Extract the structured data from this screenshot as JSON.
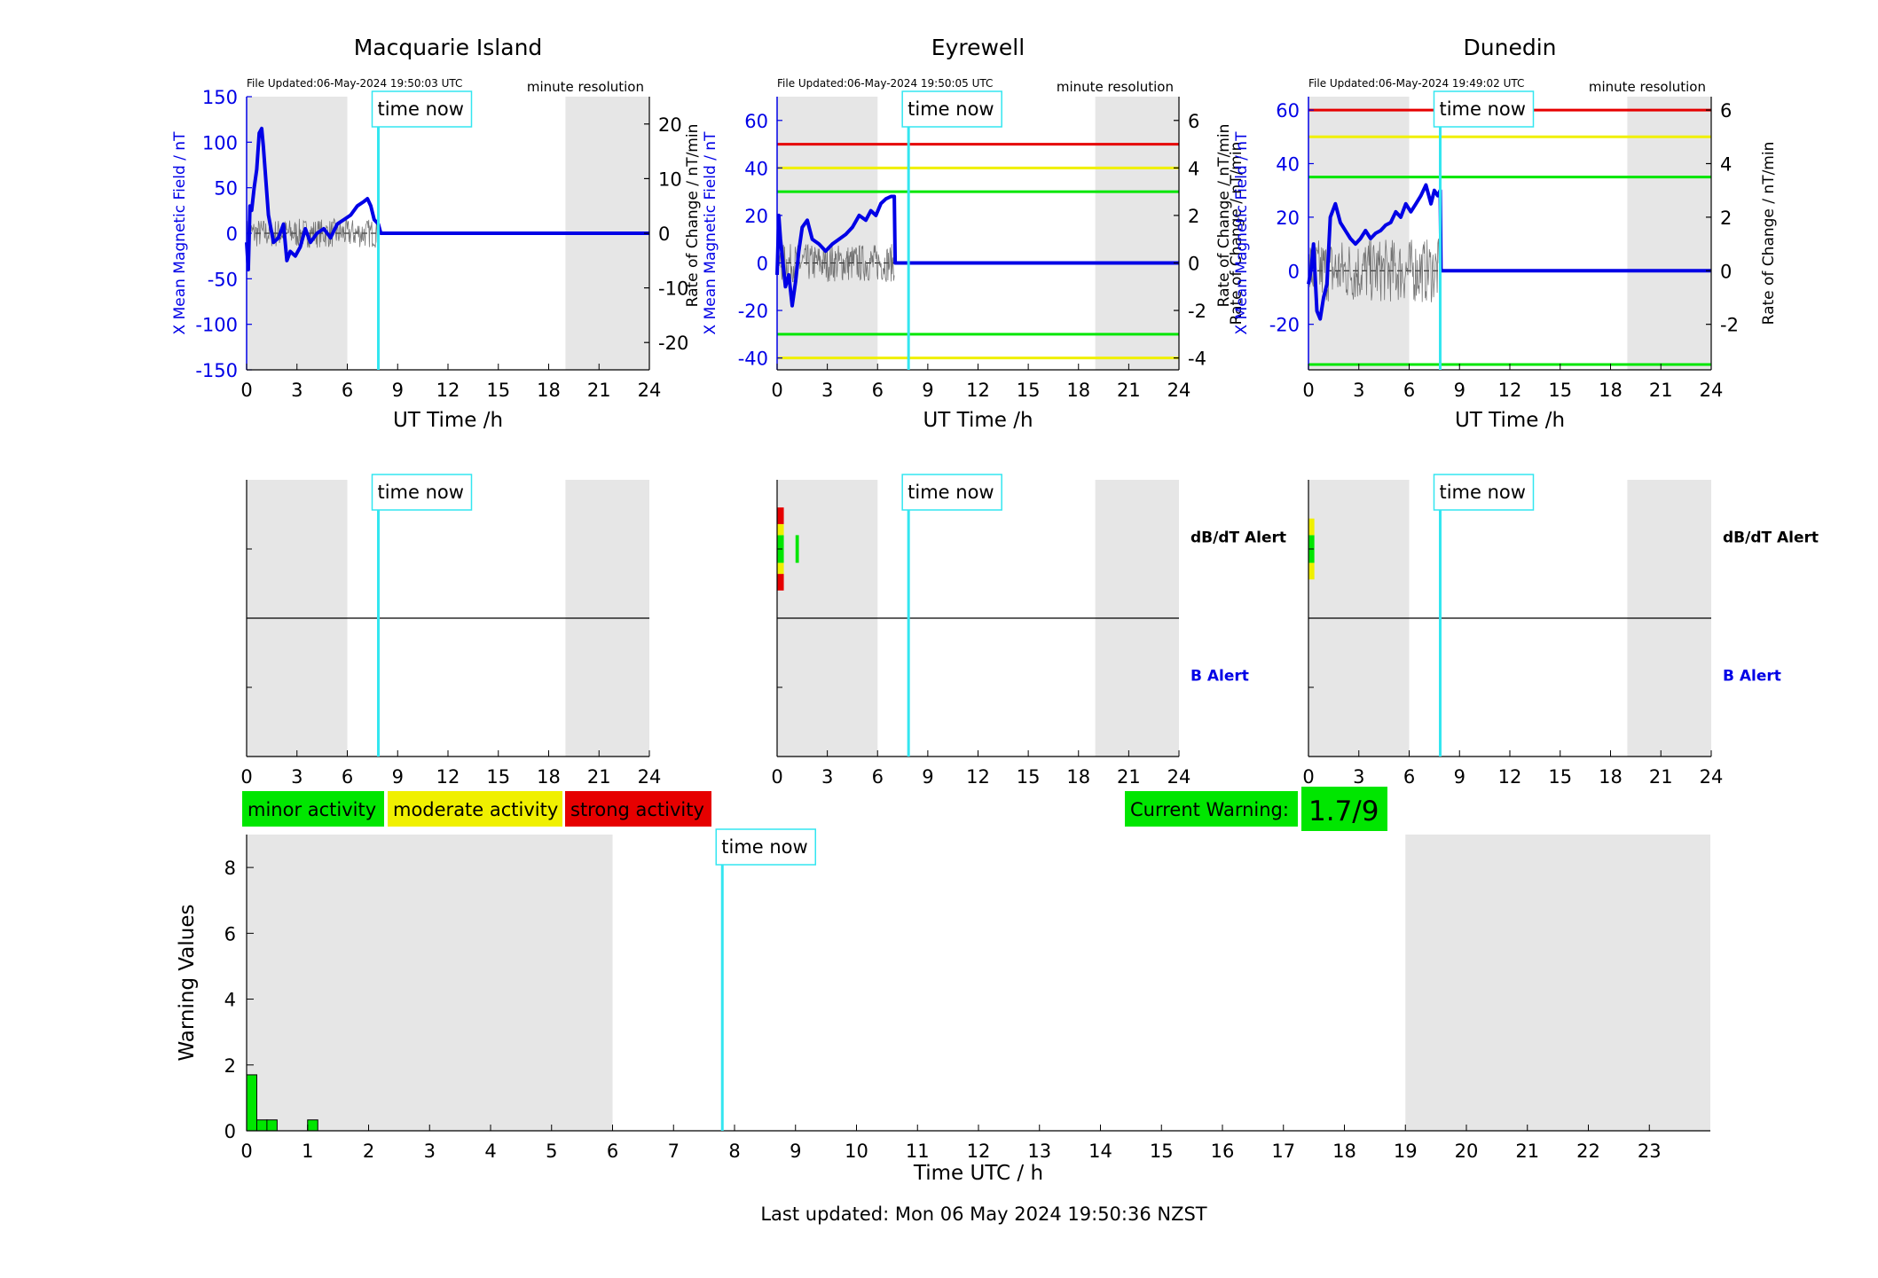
{
  "chart_data": [
    {
      "type": "line",
      "title": "Macquarie Island",
      "file_updated": "File Updated:06-May-2024 19:50:03 UTC",
      "resolution": "minute resolution",
      "now_label": "time now",
      "now_hour": 7.85,
      "night_bands": [
        [
          0,
          6
        ],
        [
          19,
          24
        ]
      ],
      "xlabel": "UT Time /h",
      "xlim": [
        0,
        24
      ],
      "xticks": [
        "0",
        "3",
        "6",
        "9",
        "12",
        "15",
        "18",
        "21",
        "24"
      ],
      "ylabel_left": "X Mean Magnetic Field / nT",
      "ylim_left": [
        -150,
        150
      ],
      "yticks_left": [
        "-150",
        "-100",
        "-50",
        "0",
        "50",
        "100",
        "150"
      ],
      "ylabel_right": "",
      "ylim_right": [
        -25,
        25
      ],
      "yticks_right": [
        "-20",
        "-10",
        "0",
        "10",
        "20"
      ],
      "threshold_lines": [],
      "series": [
        {
          "color": "#0000e6",
          "x": [
            0,
            0.1,
            0.2,
            0.3,
            0.45,
            0.6,
            0.75,
            0.9,
            1.0,
            1.1,
            1.3,
            1.6,
            1.9,
            2.2,
            2.4,
            2.6,
            2.9,
            3.2,
            3.5,
            3.8,
            4.2,
            4.6,
            5.0,
            5.4,
            5.8,
            6.2,
            6.6,
            7.0,
            7.2,
            7.4,
            7.6,
            7.85,
            8.0,
            24
          ],
          "y": [
            -10,
            -40,
            30,
            25,
            50,
            70,
            110,
            115,
            95,
            70,
            20,
            -10,
            -5,
            10,
            -30,
            -20,
            -25,
            -15,
            5,
            -10,
            0,
            5,
            -5,
            10,
            15,
            20,
            30,
            35,
            38,
            30,
            15,
            10,
            0,
            0
          ]
        },
        {
          "color": "#555555",
          "style": "noisy",
          "x": [
            0,
            7.85
          ],
          "amplitude": [
            -20,
            20
          ]
        }
      ]
    },
    {
      "type": "line",
      "title": "Eyrewell",
      "file_updated": "File Updated:06-May-2024 19:50:05 UTC",
      "resolution": "minute resolution",
      "now_label": "time now",
      "now_hour": 7.85,
      "night_bands": [
        [
          0,
          6
        ],
        [
          19,
          24
        ]
      ],
      "xlabel": "UT Time /h",
      "xlim": [
        0,
        24
      ],
      "xticks": [
        "0",
        "3",
        "6",
        "9",
        "12",
        "15",
        "18",
        "21",
        "24"
      ],
      "ylabel_left": "X Mean Magnetic Field / nT",
      "ylim_left": [
        -45,
        70
      ],
      "yticks_left": [
        "-40",
        "-20",
        "0",
        "20",
        "40",
        "60"
      ],
      "ylabel_right": "Rate of Change / nT/min",
      "ylim_right": [
        -4.5,
        7
      ],
      "yticks_right": [
        "-4",
        "-2",
        "0",
        "2",
        "4",
        "6"
      ],
      "threshold_lines": [
        {
          "value": 50,
          "color": "#e60000"
        },
        {
          "value": 40,
          "color": "#f0f000"
        },
        {
          "value": 30,
          "color": "#00e600"
        },
        {
          "value": -30,
          "color": "#00e600"
        },
        {
          "value": -40,
          "color": "#f0f000"
        }
      ],
      "series": [
        {
          "color": "#0000e6",
          "x": [
            0,
            0.1,
            0.2,
            0.35,
            0.5,
            0.7,
            0.9,
            1.1,
            1.3,
            1.5,
            1.8,
            2.1,
            2.5,
            2.9,
            3.3,
            3.7,
            4.1,
            4.5,
            4.9,
            5.3,
            5.6,
            5.9,
            6.2,
            6.5,
            6.8,
            7.0,
            7.05,
            24
          ],
          "y": [
            -5,
            20,
            10,
            0,
            -10,
            -5,
            -18,
            -8,
            5,
            15,
            18,
            10,
            8,
            5,
            8,
            10,
            12,
            15,
            20,
            18,
            22,
            20,
            25,
            27,
            28,
            28,
            0,
            0
          ]
        },
        {
          "color": "#555555",
          "style": "noisy",
          "x": [
            0,
            7.0
          ],
          "amplitude": [
            -10,
            10
          ]
        }
      ]
    },
    {
      "type": "line",
      "title": "Dunedin",
      "file_updated": "File Updated:06-May-2024 19:49:02 UTC",
      "resolution": "minute resolution",
      "now_label": "time now",
      "now_hour": 7.85,
      "night_bands": [
        [
          0,
          6
        ],
        [
          19,
          24
        ]
      ],
      "xlabel": "UT Time /h",
      "xlim": [
        0,
        24
      ],
      "xticks": [
        "0",
        "3",
        "6",
        "9",
        "12",
        "15",
        "18",
        "21",
        "24"
      ],
      "ylabel_left": "X Mean Magnetic Field / nT",
      "ylim_left": [
        -37,
        65
      ],
      "yticks_left": [
        "-20",
        "0",
        "20",
        "40",
        "60"
      ],
      "ylabel_right": "Rate of Change / nT/min",
      "ylim_right": [
        -3.7,
        6.5
      ],
      "yticks_right": [
        "-2",
        "0",
        "2",
        "4",
        "6"
      ],
      "threshold_lines": [
        {
          "value": 60,
          "color": "#e60000"
        },
        {
          "value": 50,
          "color": "#f0f000"
        },
        {
          "value": 35,
          "color": "#00e600"
        },
        {
          "value": -35,
          "color": "#00e600"
        }
      ],
      "series": [
        {
          "color": "#0000e6",
          "x": [
            0,
            0.15,
            0.3,
            0.5,
            0.7,
            0.9,
            1.1,
            1.3,
            1.6,
            1.9,
            2.2,
            2.5,
            2.8,
            3.1,
            3.4,
            3.7,
            4.0,
            4.3,
            4.6,
            4.9,
            5.2,
            5.5,
            5.8,
            6.1,
            6.4,
            6.7,
            7.0,
            7.3,
            7.5,
            7.7,
            7.85,
            7.9,
            24
          ],
          "y": [
            -5,
            0,
            10,
            -15,
            -18,
            -10,
            -5,
            20,
            25,
            18,
            15,
            12,
            10,
            12,
            15,
            12,
            14,
            15,
            17,
            18,
            22,
            20,
            25,
            22,
            25,
            28,
            32,
            25,
            30,
            28,
            30,
            0,
            0
          ]
        },
        {
          "color": "#555555",
          "style": "noisy",
          "x": [
            0,
            7.85
          ],
          "amplitude": [
            -15,
            15
          ]
        }
      ]
    },
    {
      "type": "heatmap",
      "now_label": "time now",
      "now_hour": 7.85,
      "night_bands": [
        [
          0,
          6
        ],
        [
          19,
          24
        ]
      ],
      "xlim": [
        0,
        24
      ],
      "xticks": [
        "0",
        "3",
        "6",
        "9",
        "12",
        "15",
        "18",
        "21",
        "24"
      ],
      "row_labels": [],
      "blocks": []
    },
    {
      "type": "heatmap",
      "now_label": "time now",
      "now_hour": 7.85,
      "night_bands": [
        [
          0,
          6
        ],
        [
          19,
          24
        ]
      ],
      "xlim": [
        0,
        24
      ],
      "xticks": [
        "0",
        "3",
        "6",
        "9",
        "12",
        "15",
        "18",
        "21",
        "24"
      ],
      "row_labels": [
        "dB/dT Alert",
        "B Alert"
      ],
      "blocks": [
        {
          "x0": 0,
          "x1": 0.4,
          "y0": 0.6,
          "y1": 0.66,
          "color": "#e60000"
        },
        {
          "x0": 0,
          "x1": 0.4,
          "y0": 0.66,
          "y1": 0.7,
          "color": "#f0f000"
        },
        {
          "x0": 0,
          "x1": 0.4,
          "y0": 0.7,
          "y1": 0.8,
          "color": "#00e600"
        },
        {
          "x0": 0,
          "x1": 0.4,
          "y0": 0.8,
          "y1": 0.84,
          "color": "#f0f000"
        },
        {
          "x0": 0,
          "x1": 0.4,
          "y0": 0.84,
          "y1": 0.9,
          "color": "#e60000"
        },
        {
          "x0": 1.1,
          "x1": 1.3,
          "y0": 0.7,
          "y1": 0.8,
          "color": "#00e600"
        }
      ]
    },
    {
      "type": "heatmap",
      "now_label": "time now",
      "now_hour": 7.85,
      "night_bands": [
        [
          0,
          6
        ],
        [
          19,
          24
        ]
      ],
      "xlim": [
        0,
        24
      ],
      "xticks": [
        "0",
        "3",
        "6",
        "9",
        "12",
        "15",
        "18",
        "21",
        "24"
      ],
      "row_labels": [
        "dB/dT Alert",
        "B Alert"
      ],
      "blocks": [
        {
          "x0": 0,
          "x1": 0.35,
          "y0": 0.64,
          "y1": 0.7,
          "color": "#f0f000"
        },
        {
          "x0": 0,
          "x1": 0.35,
          "y0": 0.7,
          "y1": 0.8,
          "color": "#00e600"
        },
        {
          "x0": 0,
          "x1": 0.35,
          "y0": 0.8,
          "y1": 0.86,
          "color": "#f0f000"
        }
      ]
    },
    {
      "type": "bar",
      "now_label": "time now",
      "now_hour": 7.8,
      "night_bands": [
        [
          0,
          6
        ],
        [
          19,
          24
        ]
      ],
      "xlabel": "Time UTC / h",
      "ylabel": "Warning Values",
      "xlim": [
        0,
        24
      ],
      "ylim": [
        0,
        9
      ],
      "xticks": [
        "0",
        "1",
        "2",
        "3",
        "4",
        "5",
        "6",
        "7",
        "8",
        "9",
        "10",
        "11",
        "12",
        "13",
        "14",
        "15",
        "16",
        "17",
        "18",
        "19",
        "20",
        "21",
        "22",
        "23"
      ],
      "yticks": [
        "0",
        "2",
        "4",
        "6",
        "8"
      ],
      "bars": [
        {
          "x": 0,
          "w": 0.167,
          "value": 1.7
        },
        {
          "x": 0.167,
          "w": 0.167,
          "value": 0.33
        },
        {
          "x": 0.333,
          "w": 0.167,
          "value": 0.33
        },
        {
          "x": 1.0,
          "w": 0.167,
          "value": 0.33
        }
      ],
      "bar_color": "#00e600"
    }
  ],
  "legend": [
    {
      "label": "minor activity",
      "color": "#00e600"
    },
    {
      "label": "moderate activity",
      "color": "#f0f000"
    },
    {
      "label": "strong activity",
      "color": "#e60000"
    }
  ],
  "current_warning": {
    "label": "Current Warning:",
    "value": "1.7/9",
    "color": "#00e600"
  },
  "footer": "Last updated: Mon 06 May 2024 19:50:36 NZST",
  "colors": {
    "night": "#e6e6e6",
    "now_line": "#33e6f0",
    "left_axis": "#0000e6"
  }
}
